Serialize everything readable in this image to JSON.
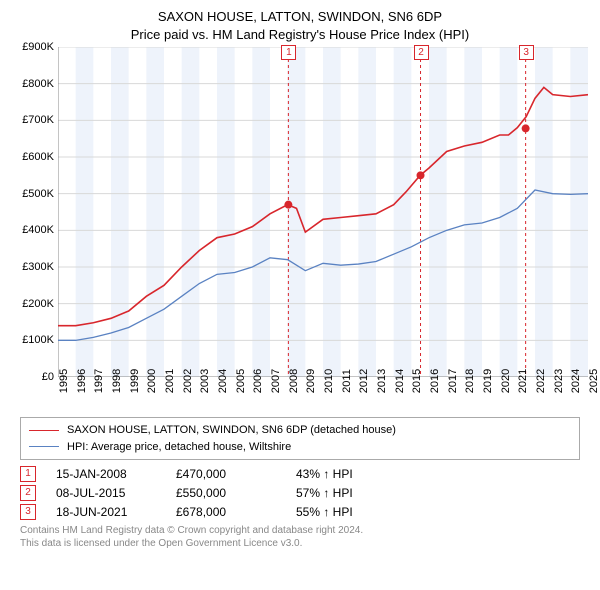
{
  "title_line1": "SAXON HOUSE, LATTON, SWINDON, SN6 6DP",
  "title_line2": "Price paid vs. HM Land Registry's House Price Index (HPI)",
  "chart": {
    "type": "line",
    "xlim": [
      1995,
      2025
    ],
    "ylim": [
      0,
      900000
    ],
    "ytick_step": 100000,
    "xtick_step": 1,
    "y_prefix": "£",
    "y_tick_labels": [
      "£0",
      "£100K",
      "£200K",
      "£300K",
      "£400K",
      "£500K",
      "£600K",
      "£700K",
      "£800K",
      "£900K"
    ],
    "x_tick_labels": [
      "1995",
      "1996",
      "1997",
      "1998",
      "1999",
      "2000",
      "2001",
      "2002",
      "2003",
      "2004",
      "2005",
      "2006",
      "2007",
      "2008",
      "2009",
      "2010",
      "2011",
      "2012",
      "2013",
      "2014",
      "2015",
      "2016",
      "2017",
      "2018",
      "2019",
      "2020",
      "2021",
      "2022",
      "2023",
      "2024",
      "2025"
    ],
    "grid_color": "#d8d8d8",
    "band_fill": "#eef3fb",
    "band_years": [
      [
        1996,
        1997
      ],
      [
        1998,
        1999
      ],
      [
        2000,
        2001
      ],
      [
        2002,
        2003
      ],
      [
        2004,
        2005
      ],
      [
        2006,
        2007
      ],
      [
        2008,
        2009
      ],
      [
        2010,
        2011
      ],
      [
        2012,
        2013
      ],
      [
        2014,
        2015
      ],
      [
        2016,
        2017
      ],
      [
        2018,
        2019
      ],
      [
        2020,
        2021
      ],
      [
        2022,
        2023
      ],
      [
        2024,
        2025
      ]
    ],
    "series": [
      {
        "name": "SAXON HOUSE, LATTON, SWINDON, SN6 6DP (detached house)",
        "color": "#d8262c",
        "width": 1.6,
        "points": [
          [
            1995,
            140000
          ],
          [
            1996,
            140000
          ],
          [
            1997,
            148000
          ],
          [
            1998,
            160000
          ],
          [
            1999,
            180000
          ],
          [
            2000,
            220000
          ],
          [
            2001,
            250000
          ],
          [
            2002,
            300000
          ],
          [
            2003,
            345000
          ],
          [
            2004,
            380000
          ],
          [
            2005,
            390000
          ],
          [
            2006,
            410000
          ],
          [
            2007,
            445000
          ],
          [
            2008,
            470000
          ],
          [
            2008.5,
            460000
          ],
          [
            2009,
            395000
          ],
          [
            2010,
            430000
          ],
          [
            2011,
            435000
          ],
          [
            2012,
            440000
          ],
          [
            2013,
            445000
          ],
          [
            2014,
            470000
          ],
          [
            2014.7,
            505000
          ],
          [
            2015.5,
            550000
          ],
          [
            2016,
            570000
          ],
          [
            2017,
            615000
          ],
          [
            2018,
            630000
          ],
          [
            2019,
            640000
          ],
          [
            2020,
            660000
          ],
          [
            2020.5,
            660000
          ],
          [
            2021,
            680000
          ],
          [
            2021.5,
            710000
          ],
          [
            2022,
            760000
          ],
          [
            2022.5,
            790000
          ],
          [
            2023,
            770000
          ],
          [
            2024,
            765000
          ],
          [
            2025,
            770000
          ]
        ]
      },
      {
        "name": "HPI: Average price, detached house, Wiltshire",
        "color": "#5a82c2",
        "width": 1.3,
        "points": [
          [
            1995,
            100000
          ],
          [
            1996,
            100000
          ],
          [
            1997,
            108000
          ],
          [
            1998,
            120000
          ],
          [
            1999,
            135000
          ],
          [
            2000,
            160000
          ],
          [
            2001,
            185000
          ],
          [
            2002,
            220000
          ],
          [
            2003,
            255000
          ],
          [
            2004,
            280000
          ],
          [
            2005,
            285000
          ],
          [
            2006,
            300000
          ],
          [
            2007,
            325000
          ],
          [
            2008,
            320000
          ],
          [
            2009,
            290000
          ],
          [
            2010,
            310000
          ],
          [
            2011,
            305000
          ],
          [
            2012,
            308000
          ],
          [
            2013,
            315000
          ],
          [
            2014,
            335000
          ],
          [
            2015,
            355000
          ],
          [
            2016,
            380000
          ],
          [
            2017,
            400000
          ],
          [
            2018,
            415000
          ],
          [
            2019,
            420000
          ],
          [
            2020,
            435000
          ],
          [
            2021,
            460000
          ],
          [
            2022,
            510000
          ],
          [
            2023,
            500000
          ],
          [
            2024,
            498000
          ],
          [
            2025,
            500000
          ]
        ]
      }
    ],
    "events": [
      {
        "n": "1",
        "x": 2008.04,
        "marker_y": 470000,
        "color": "#d8262c"
      },
      {
        "n": "2",
        "x": 2015.52,
        "marker_y": 550000,
        "color": "#d8262c"
      },
      {
        "n": "3",
        "x": 2021.47,
        "marker_y": 678000,
        "color": "#d8262c"
      }
    ]
  },
  "legend_items": [
    {
      "color": "#d8262c",
      "text": "SAXON HOUSE, LATTON, SWINDON, SN6 6DP (detached house)"
    },
    {
      "color": "#5a82c2",
      "text": "HPI: Average price, detached house, Wiltshire"
    }
  ],
  "events_table": [
    {
      "n": "1",
      "date": "15-JAN-2008",
      "price": "£470,000",
      "pct": "43% ↑ HPI",
      "color": "#d8262c"
    },
    {
      "n": "2",
      "date": "08-JUL-2015",
      "price": "£550,000",
      "pct": "57% ↑ HPI",
      "color": "#d8262c"
    },
    {
      "n": "3",
      "date": "18-JUN-2021",
      "price": "£678,000",
      "pct": "55% ↑ HPI",
      "color": "#d8262c"
    }
  ],
  "footer_line1": "Contains HM Land Registry data © Crown copyright and database right 2024.",
  "footer_line2": "This data is licensed under the Open Government Licence v3.0."
}
